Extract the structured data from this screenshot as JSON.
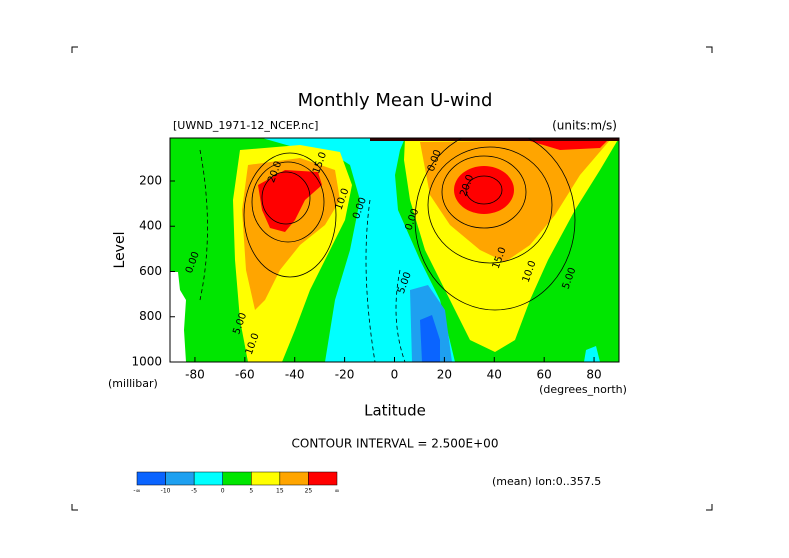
{
  "chart_data": {
    "type": "contour",
    "title": "Monthly Mean U-wind",
    "dataset": "[UWND_1971-12_NCEP.nc]",
    "units": "(units:m/s)",
    "x_label": "Latitude",
    "x_unit": "(degrees_north)",
    "y_label": "Level",
    "y_unit": "(millibar)",
    "xlim": [
      -90,
      90
    ],
    "xticks": [
      -80,
      -60,
      -40,
      -20,
      0,
      20,
      40,
      60,
      80
    ],
    "ylim": [
      1000,
      10
    ],
    "yticks": [
      200,
      400,
      600,
      800,
      1000
    ],
    "contour_interval": "CONTOUR INTERVAL = 2.500E+00",
    "averaging": "(mean) lon:0..357.5",
    "colorbar": {
      "colors": [
        "#0a64ff",
        "#1ea0f0",
        "#00ffff",
        "#00e600",
        "#ffff00",
        "#ffa500",
        "#ff0000"
      ],
      "labels": [
        "-∞",
        -10,
        -5,
        0,
        5,
        15,
        25,
        "∞"
      ]
    },
    "contour_labels": [
      {
        "text": "0.00",
        "lat": -81,
        "level": 560
      },
      {
        "text": "5.00",
        "lat": -62,
        "level": 830
      },
      {
        "text": "10.0",
        "lat": -57,
        "level": 920
      },
      {
        "text": "20.0",
        "lat": -48,
        "level": 160
      },
      {
        "text": "15.0",
        "lat": -30,
        "level": 120
      },
      {
        "text": "10.0",
        "lat": -21,
        "level": 280
      },
      {
        "text": "0.00",
        "lat": -14,
        "level": 320
      },
      {
        "text": "0.00",
        "lat": 7,
        "level": 370
      },
      {
        "text": "5.00",
        "lat": 4,
        "level": 650
      },
      {
        "text": "20.0",
        "lat": 29,
        "level": 220
      },
      {
        "text": "15.0",
        "lat": 42,
        "level": 540
      },
      {
        "text": "10.0",
        "lat": 54,
        "level": 600
      },
      {
        "text": "5.00",
        "lat": 70,
        "level": 630
      },
      {
        "text": "0.00",
        "lat": 16,
        "level": 110
      }
    ]
  }
}
